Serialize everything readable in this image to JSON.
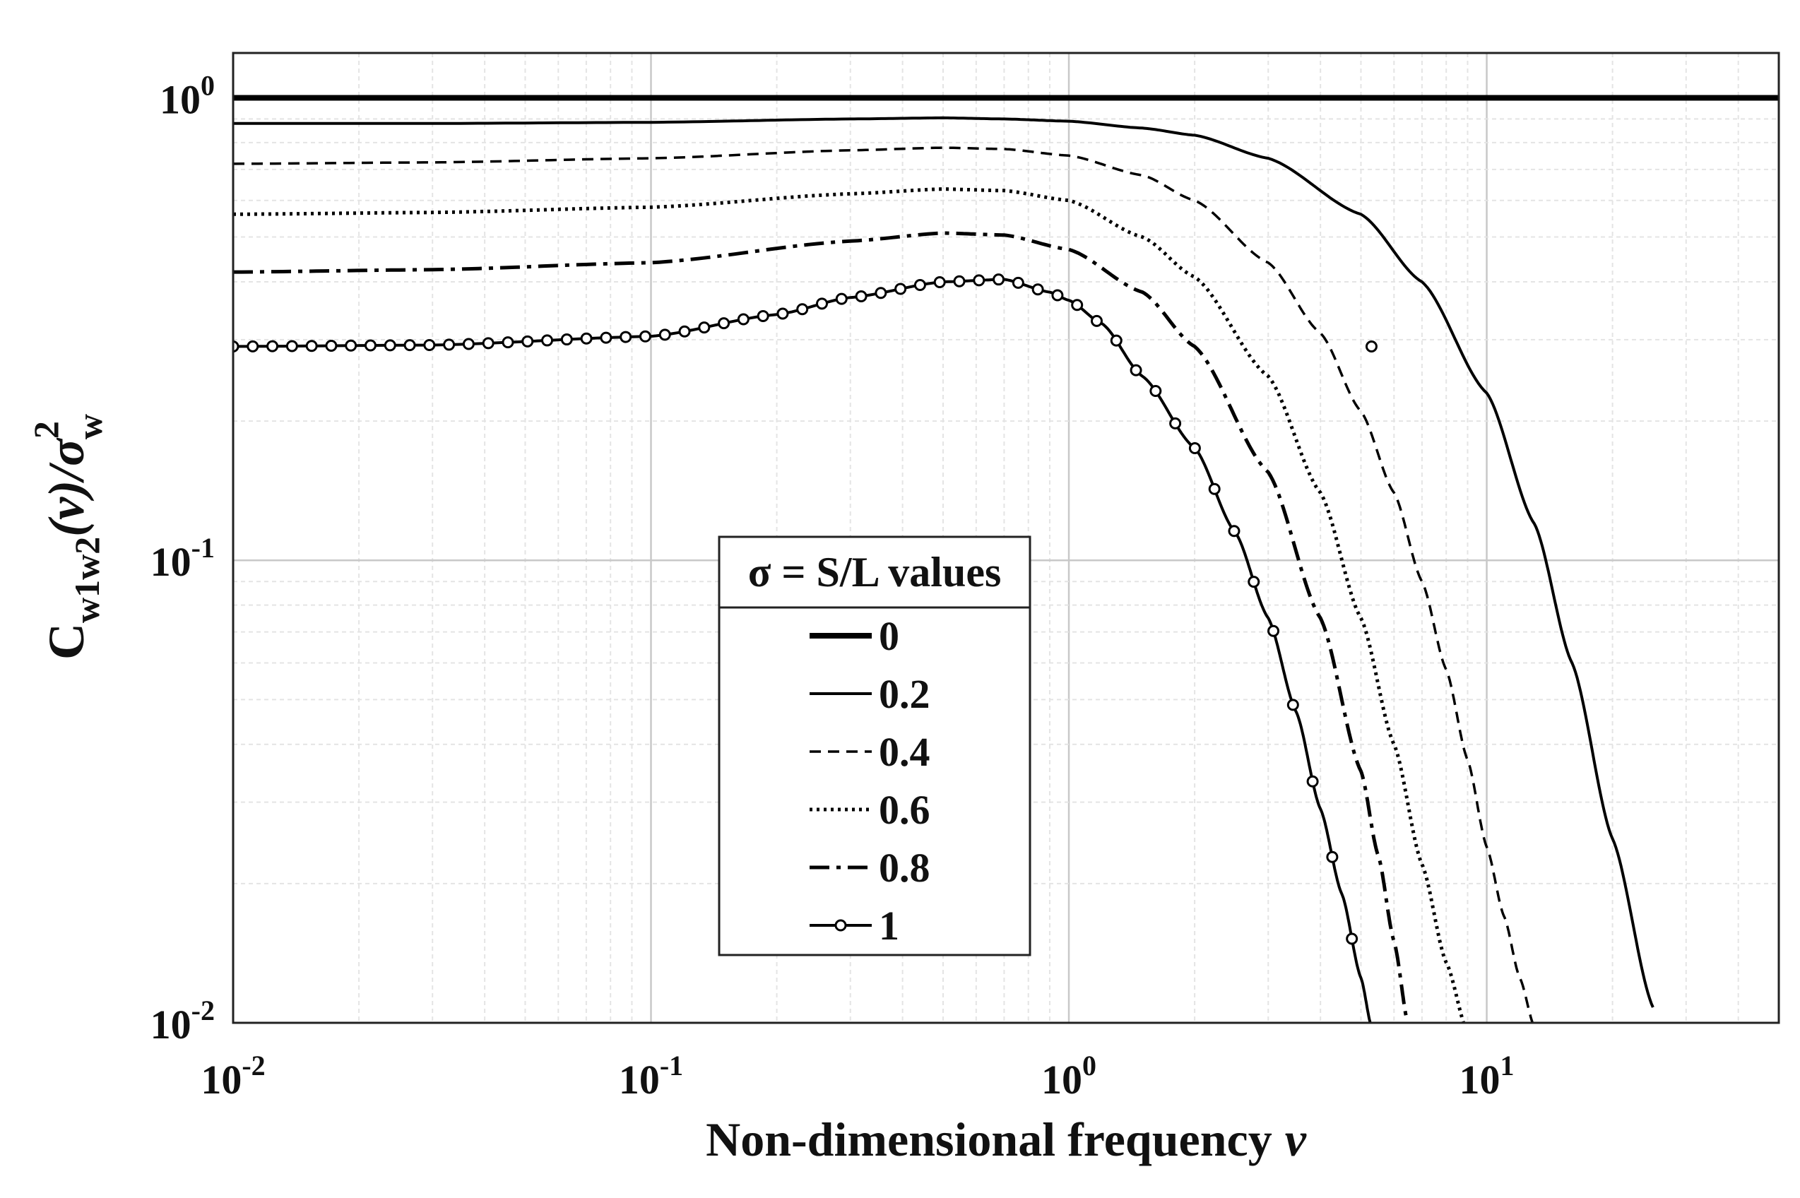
{
  "chart_data": {
    "type": "line",
    "title": "",
    "xlabel": "Non-dimensional frequency ν",
    "xlabel_text": "Non-dimensional frequency",
    "xlabel_symbol": "ν",
    "ylabel": "C_w1w2(ν)/σ_w^2",
    "ylabel_parts": {
      "main": "C",
      "sub": "w1w2",
      "mid": "(ν)/σ",
      "sup": "2",
      "sub2": "w"
    },
    "xscale": "log",
    "yscale": "log",
    "xlim": [
      0.01,
      50
    ],
    "ylim": [
      0.01,
      1.25
    ],
    "grid": true,
    "x_ticks": [
      {
        "value": 0.01,
        "base": "10",
        "exp": "-2"
      },
      {
        "value": 0.1,
        "base": "10",
        "exp": "-1"
      },
      {
        "value": 1,
        "base": "10",
        "exp": "0"
      },
      {
        "value": 10,
        "base": "10",
        "exp": "1"
      }
    ],
    "y_ticks": [
      {
        "value": 0.01,
        "base": "10",
        "exp": "-2"
      },
      {
        "value": 0.1,
        "base": "10",
        "exp": "-1"
      },
      {
        "value": 1,
        "base": "10",
        "exp": "0"
      }
    ],
    "legend": {
      "title": "σ = S/L values",
      "position": "center-left",
      "entries": [
        "0",
        "0.2",
        "0.4",
        "0.6",
        "0.8",
        "1"
      ]
    },
    "series": [
      {
        "name": "0",
        "style": "solid-thick",
        "color": "#000000",
        "x": [
          0.01,
          0.1,
          1,
          10,
          50
        ],
        "y": [
          1.0,
          1.0,
          1.0,
          1.0,
          1.0
        ]
      },
      {
        "name": "0.2",
        "style": "solid",
        "color": "#000000",
        "x": [
          0.01,
          0.03,
          0.1,
          0.3,
          0.5,
          0.7,
          1.0,
          1.5,
          2,
          3,
          5,
          7,
          10,
          13,
          16,
          20,
          25
        ],
        "y": [
          0.88,
          0.88,
          0.885,
          0.9,
          0.905,
          0.9,
          0.89,
          0.86,
          0.83,
          0.74,
          0.56,
          0.4,
          0.23,
          0.12,
          0.06,
          0.025,
          0.0108
        ]
      },
      {
        "name": "0.4",
        "style": "dashed",
        "color": "#000000",
        "x": [
          0.01,
          0.03,
          0.1,
          0.3,
          0.5,
          0.7,
          1.0,
          1.5,
          2,
          3,
          4,
          5,
          6,
          7,
          8,
          9,
          10,
          11,
          12,
          13
        ],
        "y": [
          0.72,
          0.725,
          0.74,
          0.77,
          0.78,
          0.775,
          0.75,
          0.68,
          0.6,
          0.44,
          0.31,
          0.21,
          0.14,
          0.09,
          0.058,
          0.037,
          0.024,
          0.017,
          0.0125,
          0.0098
        ]
      },
      {
        "name": "0.6",
        "style": "dotted",
        "color": "#000000",
        "x": [
          0.01,
          0.03,
          0.1,
          0.3,
          0.5,
          0.7,
          1.0,
          1.5,
          2,
          3,
          4,
          5,
          6,
          7,
          8,
          9
        ],
        "y": [
          0.56,
          0.565,
          0.58,
          0.62,
          0.635,
          0.63,
          0.6,
          0.5,
          0.41,
          0.25,
          0.14,
          0.075,
          0.04,
          0.022,
          0.0135,
          0.0095
        ]
      },
      {
        "name": "0.8",
        "style": "dashdot",
        "color": "#000000",
        "x": [
          0.01,
          0.03,
          0.1,
          0.3,
          0.5,
          0.7,
          1.0,
          1.5,
          2,
          3,
          4,
          5,
          5.5,
          6,
          6.5
        ],
        "y": [
          0.42,
          0.425,
          0.44,
          0.49,
          0.51,
          0.505,
          0.47,
          0.38,
          0.29,
          0.155,
          0.075,
          0.035,
          0.023,
          0.015,
          0.0098
        ]
      },
      {
        "name": "1",
        "style": "marker-circle",
        "color": "#000000",
        "x": [
          0.01,
          0.03,
          0.1,
          0.2,
          0.3,
          0.5,
          0.7,
          0.9,
          1.0,
          1.2,
          1.5,
          2,
          2.5,
          3,
          3.5,
          4,
          4.5,
          5,
          5.3
        ],
        "y": [
          0.29,
          0.292,
          0.305,
          0.34,
          0.37,
          0.4,
          0.405,
          0.38,
          0.365,
          0.325,
          0.25,
          0.175,
          0.115,
          0.075,
          0.047,
          0.029,
          0.019,
          0.0125,
          0.0098
        ]
      }
    ]
  }
}
